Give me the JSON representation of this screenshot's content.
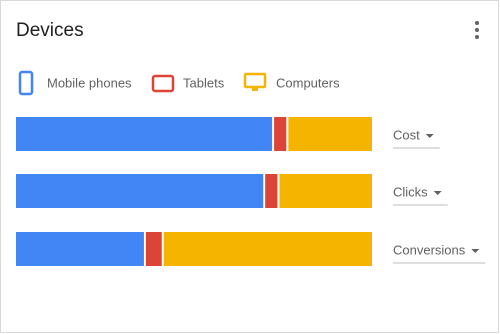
{
  "chart_data": {
    "type": "stacked-bar",
    "title": "Devices",
    "categories": [
      "Cost",
      "Clicks",
      "Conversions"
    ],
    "series": [
      {
        "name": "Mobile phones",
        "color": "#4285f4",
        "values": [
          72.5,
          70,
          36.5
        ]
      },
      {
        "name": "Tablets",
        "color": "#db4437",
        "values": [
          4,
          4,
          5
        ]
      },
      {
        "name": "Computers",
        "color": "#f4b400",
        "values": [
          23.5,
          26,
          58.5
        ]
      }
    ],
    "xlim": [
      0,
      100
    ]
  }
}
